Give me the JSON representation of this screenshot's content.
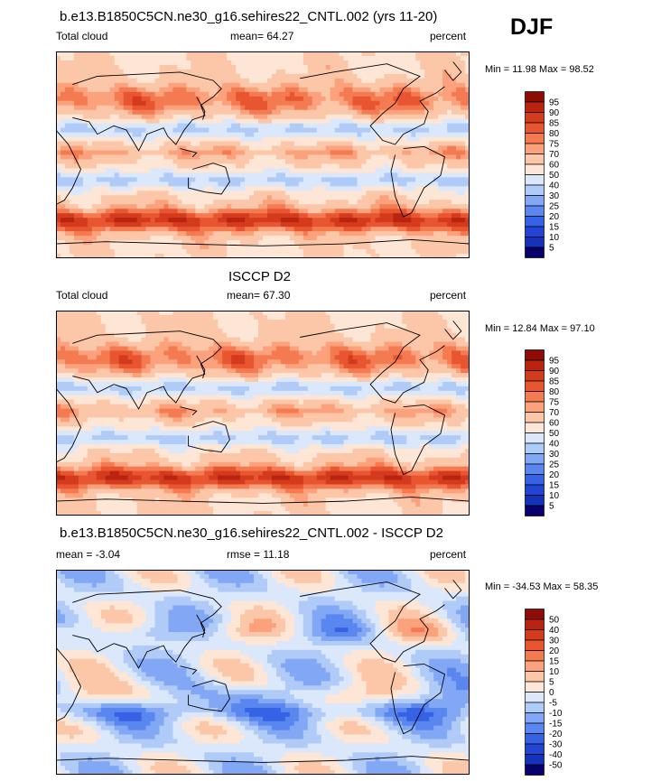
{
  "season": "DJF",
  "colors": {
    "levels_cloud": [
      "#08006b",
      "#1533b8",
      "#2444d6",
      "#3663e6",
      "#5a86ef",
      "#82a8f5",
      "#b0cbf8",
      "#dbe7fa",
      "#fde6d6",
      "#fcc6a8",
      "#fba27c",
      "#f47a51",
      "#e85531",
      "#d43a1c",
      "#b82410",
      "#8c0c06"
    ],
    "levels_diff": [
      "#08006b",
      "#1533b8",
      "#2444d6",
      "#3663e6",
      "#5a86ef",
      "#82a8f5",
      "#b0cbf8",
      "#dbe7fa",
      "#fde6d6",
      "#fcc6a8",
      "#fba27c",
      "#f47a51",
      "#e85531",
      "#d43a1c",
      "#b82410",
      "#8c0c06"
    ],
    "land_outline": "#000000"
  },
  "chart_data": [
    {
      "type": "heatmap",
      "title": "b.e13.B1850C5CN.ne30_g16.sehires22_CNTL.002 (yrs 11-20)",
      "left_label": "Total cloud",
      "center_label": "mean=  64.27",
      "right_label": "percent",
      "minmax": "Min =  11.98 Max =  98.52",
      "colorbar_labels": [
        "95",
        "90",
        "85",
        "80",
        "75",
        "70",
        "60",
        "50",
        "40",
        "30",
        "25",
        "20",
        "15",
        "10",
        "5"
      ],
      "palette": "levels_cloud",
      "variable": "Total cloud",
      "units": "percent",
      "mean": 64.27,
      "min": 11.98,
      "max": 98.52
    },
    {
      "type": "heatmap",
      "title": "ISCCP D2",
      "left_label": "Total cloud",
      "center_label": "mean=  67.30",
      "right_label": "percent",
      "minmax": "Min =  12.84 Max =  97.10",
      "colorbar_labels": [
        "95",
        "90",
        "85",
        "80",
        "75",
        "70",
        "60",
        "50",
        "40",
        "30",
        "25",
        "20",
        "15",
        "10",
        "5"
      ],
      "palette": "levels_cloud",
      "variable": "Total cloud",
      "units": "percent",
      "mean": 67.3,
      "min": 12.84,
      "max": 97.1
    },
    {
      "type": "heatmap",
      "title": "b.e13.B1850C5CN.ne30_g16.sehires22_CNTL.002 - ISCCP D2",
      "left_label": "mean =  -3.04",
      "center_label": "rmse =  11.18",
      "right_label": "percent",
      "minmax": "Min = -34.53 Max =  58.35",
      "colorbar_labels": [
        "50",
        "40",
        "30",
        "20",
        "15",
        "10",
        "5",
        "0",
        "-5",
        "-10",
        "-15",
        "-20",
        "-30",
        "-40",
        "-50"
      ],
      "palette": "levels_diff",
      "units": "percent",
      "mean": -3.04,
      "rmse": 11.18,
      "min": -34.53,
      "max": 58.35
    }
  ]
}
